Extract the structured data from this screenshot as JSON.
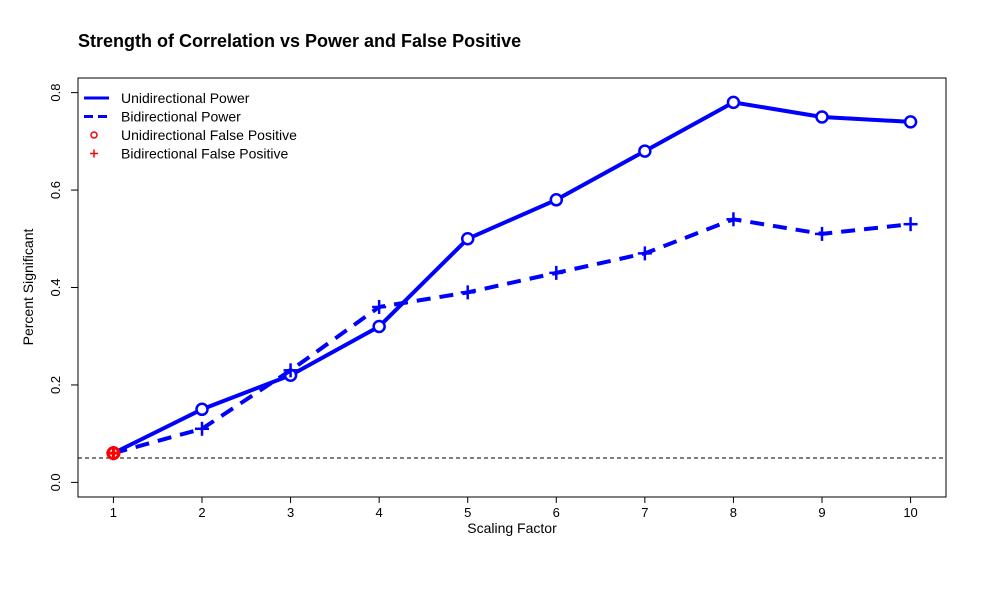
{
  "chart_data": {
    "type": "line",
    "title": "Strength of Correlation vs Power and False Positive",
    "xlabel": "Scaling Factor",
    "ylabel": "Percent Significant",
    "x": [
      1,
      2,
      3,
      4,
      5,
      6,
      7,
      8,
      9,
      10
    ],
    "x_tick_labels": [
      "1",
      "2",
      "3",
      "4",
      "5",
      "6",
      "7",
      "8",
      "9",
      "10"
    ],
    "y_ticks": [
      0.0,
      0.2,
      0.4,
      0.6,
      0.8
    ],
    "y_tick_labels": [
      "0.0",
      "0.2",
      "0.4",
      "0.6",
      "0.8"
    ],
    "xlim": [
      0.6,
      10.4
    ],
    "ylim": [
      -0.03,
      0.83
    ],
    "grid": false,
    "reference_line": {
      "y": 0.05,
      "style": "dashed",
      "color": "#000000"
    },
    "legend_position": "top-left",
    "series": [
      {
        "name": "Unidirectional Power",
        "values": [
          0.06,
          0.15,
          0.22,
          0.32,
          0.5,
          0.58,
          0.68,
          0.78,
          0.75,
          0.74
        ],
        "line": "solid",
        "marker": "o",
        "color": "#0000ff"
      },
      {
        "name": "Bidirectional Power",
        "values": [
          0.06,
          0.11,
          0.23,
          0.36,
          0.39,
          0.43,
          0.47,
          0.54,
          0.51,
          0.53
        ],
        "line": "dashed",
        "marker": "+",
        "color": "#0000ff"
      },
      {
        "name": "Unidirectional False Positive",
        "values": [
          0.06,
          null,
          null,
          null,
          null,
          null,
          null,
          null,
          null,
          null
        ],
        "line": "none",
        "marker": "o",
        "color": "#ff0000"
      },
      {
        "name": "Bidirectional False Positive",
        "values": [
          0.06,
          null,
          null,
          null,
          null,
          null,
          null,
          null,
          null,
          null
        ],
        "line": "none",
        "marker": "+",
        "color": "#ff0000"
      }
    ]
  }
}
